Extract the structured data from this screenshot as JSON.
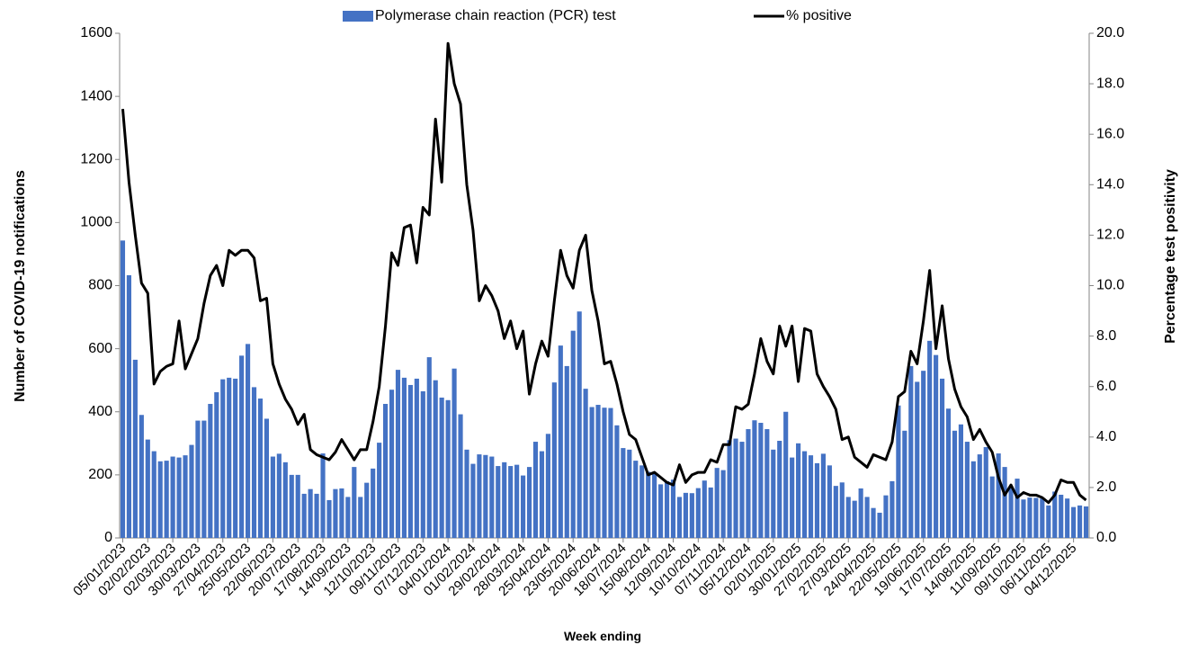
{
  "chart_data": {
    "type": "bar-line",
    "x_label": "Week ending",
    "y_label": "Number of COVID-19 notifications",
    "y2_label": "Percentage test positivity",
    "categories": [
      "05/01/2023",
      null,
      null,
      null,
      "02/02/2023",
      null,
      null,
      null,
      "02/03/2023",
      null,
      null,
      null,
      "30/03/2023",
      null,
      null,
      null,
      "27/04/2023",
      null,
      null,
      null,
      "25/05/2023",
      null,
      null,
      null,
      "22/06/2023",
      null,
      null,
      null,
      "20/07/2023",
      null,
      null,
      null,
      "17/08/2023",
      null,
      null,
      null,
      "14/09/2023",
      null,
      null,
      null,
      "12/10/2023",
      null,
      null,
      null,
      "09/11/2023",
      null,
      null,
      null,
      "07/12/2023",
      null,
      null,
      null,
      "04/01/2024",
      null,
      null,
      null,
      "01/02/2024",
      null,
      null,
      null,
      "29/02/2024",
      null,
      null,
      null,
      "28/03/2024",
      null,
      null,
      null,
      "25/04/2024",
      null,
      null,
      null,
      "23/05/2024",
      null,
      null,
      null,
      "20/06/2024",
      null,
      null,
      null,
      "18/07/2024",
      null,
      null,
      null,
      "15/08/2024",
      null,
      null,
      null,
      "12/09/2024",
      null,
      null,
      null,
      "10/10/2024",
      null,
      null,
      null,
      "07/11/2024",
      null,
      null,
      null,
      "05/12/2024",
      null,
      null,
      null,
      "02/01/2025",
      null,
      null,
      null,
      "30/01/2025",
      null,
      null,
      null,
      "27/02/2025",
      null,
      null,
      null,
      "27/03/2025",
      null,
      null,
      null,
      "24/04/2025",
      null,
      null,
      null,
      "22/05/2025",
      null,
      null,
      null,
      "19/06/2025",
      null,
      null,
      null,
      "17/07/2025",
      null,
      null,
      null,
      "14/08/2025",
      null,
      null,
      null,
      "11/09/2025",
      null,
      null,
      null,
      "09/10/2025",
      null,
      null,
      null,
      "06/11/2025",
      null,
      null,
      null,
      "04/12/2025",
      null,
      null
    ],
    "series": [
      {
        "name": "Polymerase chain reaction (PCR) test",
        "type": "bar",
        "color": "#4472c4",
        "values": [
          943,
          833,
          565,
          390,
          312,
          275,
          243,
          245,
          258,
          255,
          262,
          295,
          372,
          372,
          425,
          462,
          503,
          508,
          505,
          578,
          615,
          478,
          442,
          378,
          258,
          267,
          240,
          200,
          200,
          140,
          155,
          140,
          268,
          120,
          155,
          157,
          130,
          225,
          130,
          175,
          220,
          302,
          425,
          470,
          533,
          508,
          485,
          505,
          465,
          573,
          500,
          445,
          437,
          537,
          392,
          280,
          235,
          265,
          263,
          258,
          228,
          240,
          228,
          232,
          198,
          225,
          305,
          275,
          330,
          493,
          610,
          545,
          657,
          718,
          473,
          415,
          422,
          413,
          412,
          357,
          285,
          280,
          245,
          230,
          210,
          205,
          170,
          180,
          185,
          130,
          143,
          142,
          158,
          182,
          160,
          222,
          215,
          310,
          315,
          305,
          345,
          373,
          365,
          345,
          280,
          308,
          400,
          255,
          300,
          275,
          262,
          237,
          267,
          230,
          165,
          176,
          130,
          118,
          157,
          130,
          95,
          80,
          135,
          180,
          420,
          340,
          545,
          495,
          530,
          625,
          580,
          505,
          410,
          340,
          360,
          305,
          243,
          265,
          288,
          195,
          268,
          225,
          160,
          188,
          122,
          128,
          127,
          125,
          103,
          147,
          137,
          125,
          98,
          103,
          100
        ]
      },
      {
        "name": "% positive",
        "type": "line",
        "axis": "y2",
        "color": "#000000",
        "values": [
          17.0,
          14.1,
          12.0,
          10.1,
          9.7,
          6.1,
          6.6,
          6.8,
          6.9,
          8.6,
          6.7,
          7.3,
          7.9,
          9.3,
          10.4,
          10.8,
          10.0,
          11.4,
          11.2,
          11.4,
          11.4,
          11.1,
          9.4,
          9.5,
          6.9,
          6.1,
          5.5,
          5.1,
          4.5,
          4.9,
          3.5,
          3.3,
          3.2,
          3.1,
          3.4,
          3.9,
          3.5,
          3.1,
          3.5,
          3.5,
          4.6,
          6.0,
          8.4,
          11.3,
          10.8,
          12.3,
          12.4,
          10.9,
          13.1,
          12.8,
          16.6,
          14.1,
          19.6,
          18.0,
          17.2,
          14.0,
          12.2,
          9.4,
          10.0,
          9.6,
          9.0,
          7.9,
          8.6,
          7.5,
          8.2,
          5.7,
          6.9,
          7.8,
          7.2,
          9.4,
          11.4,
          10.4,
          9.9,
          11.4,
          12.0,
          9.8,
          8.6,
          6.9,
          7.0,
          6.1,
          5.0,
          4.1,
          3.9,
          3.2,
          2.5,
          2.6,
          2.4,
          2.2,
          2.1,
          2.9,
          2.2,
          2.5,
          2.6,
          2.6,
          3.1,
          3.0,
          3.7,
          3.7,
          5.2,
          5.1,
          5.3,
          6.5,
          7.9,
          7.0,
          6.5,
          8.4,
          7.6,
          8.4,
          6.2,
          8.3,
          8.2,
          6.5,
          6.0,
          5.6,
          5.1,
          3.9,
          4.0,
          3.2,
          3.0,
          2.8,
          3.3,
          3.2,
          3.1,
          3.8,
          5.6,
          5.8,
          7.4,
          6.9,
          8.6,
          10.6,
          7.5,
          9.2,
          7.1,
          5.9,
          5.2,
          4.8,
          3.9,
          4.3,
          3.8,
          3.4,
          2.4,
          1.7,
          2.1,
          1.6,
          1.8,
          1.7,
          1.7,
          1.6,
          1.4,
          1.7,
          2.3,
          2.2,
          2.2,
          1.7,
          1.5
        ]
      }
    ],
    "ylim": [
      0,
      1600
    ],
    "yticks": [
      0,
      200,
      400,
      600,
      800,
      1000,
      1200,
      1400,
      1600
    ],
    "y2lim": [
      0,
      20
    ],
    "y2ticks": [
      {
        "value": 0,
        "label": "0.0"
      },
      {
        "value": 2,
        "label": "2.0"
      },
      {
        "value": 4,
        "label": "4.0"
      },
      {
        "value": 6,
        "label": "6.0"
      },
      {
        "value": 8,
        "label": "8.0"
      },
      {
        "value": 10,
        "label": "10.0"
      },
      {
        "value": 12,
        "label": "12.0"
      },
      {
        "value": 14,
        "label": "14.0"
      },
      {
        "value": 16,
        "label": "16.0"
      },
      {
        "value": 18,
        "label": "18.0"
      },
      {
        "value": 20,
        "label": "20.0"
      }
    ],
    "legend": "top",
    "grid": false
  }
}
